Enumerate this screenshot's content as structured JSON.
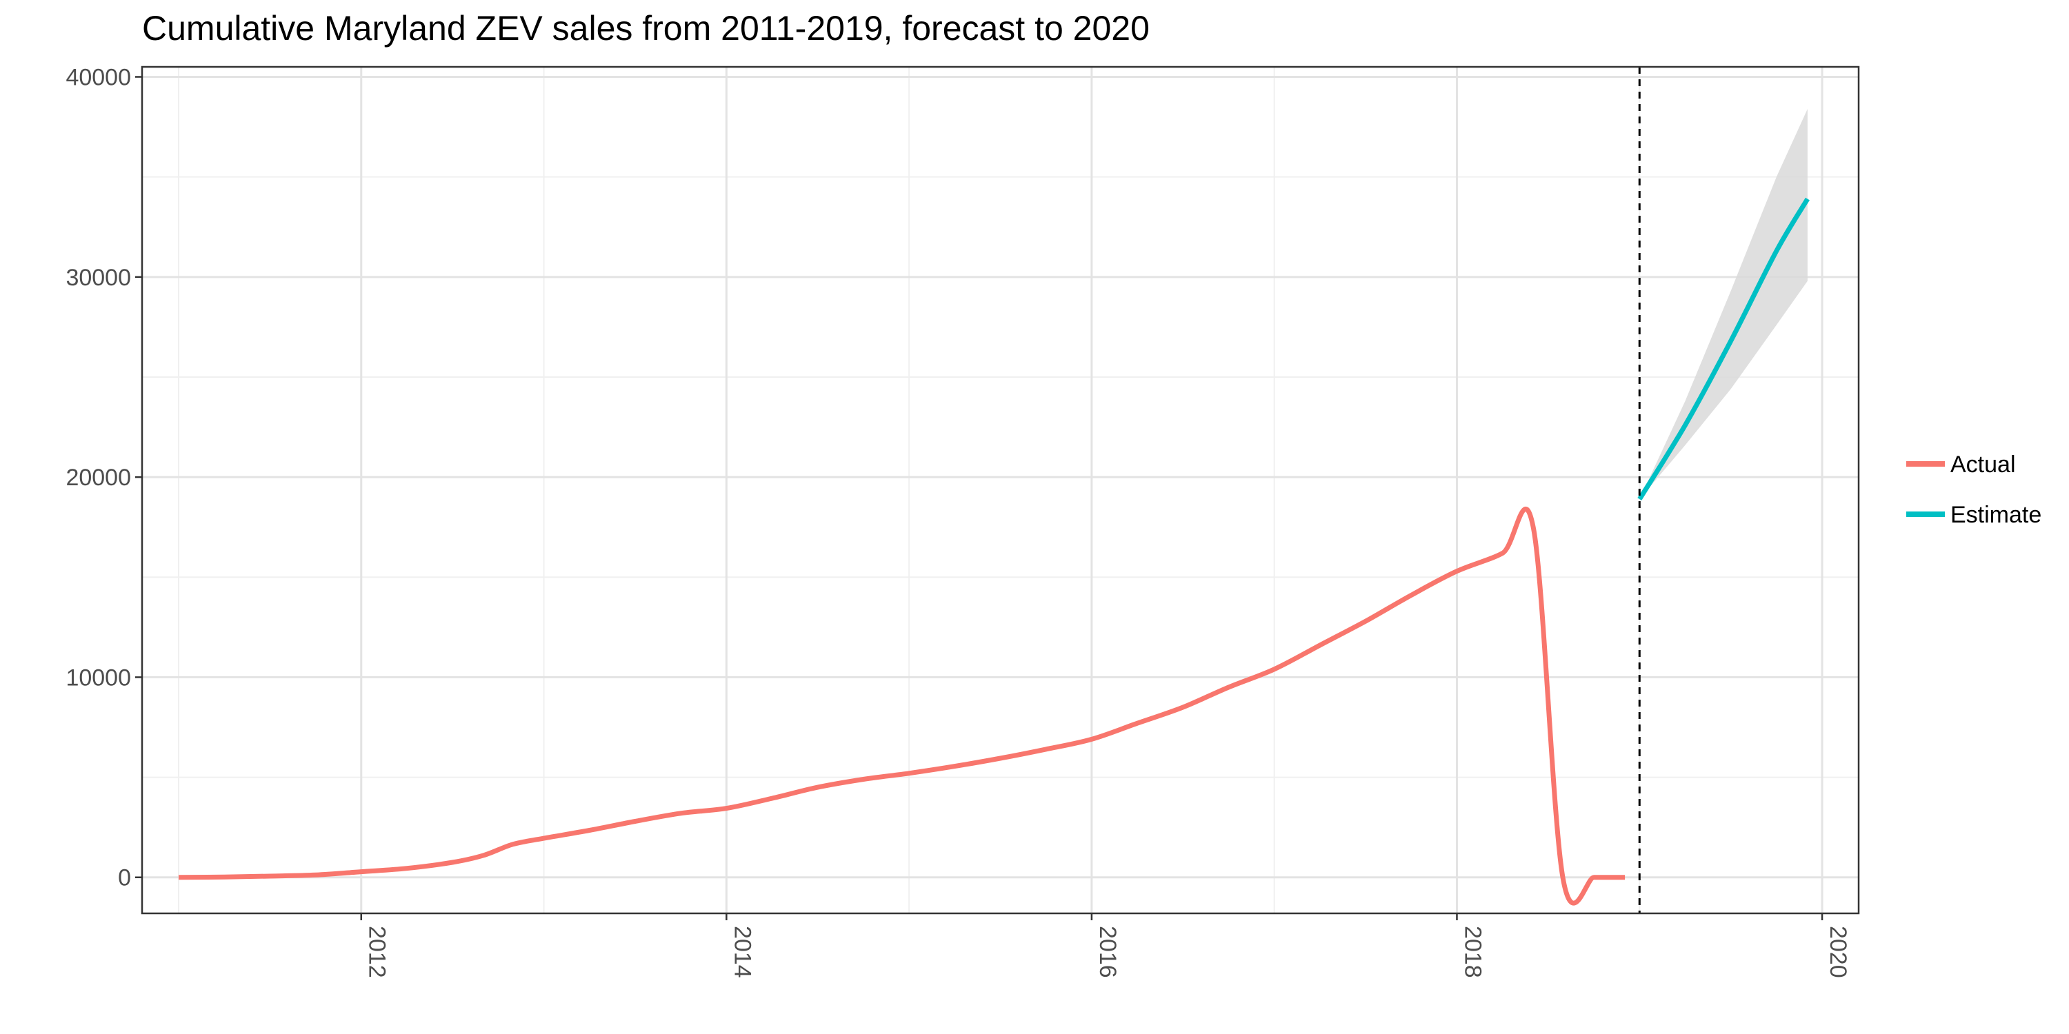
{
  "chart_data": {
    "type": "line",
    "title": "Cumulative Maryland ZEV sales from 2011-2019, forecast to 2020",
    "xlabel": "",
    "ylabel": "",
    "xlim": [
      2010.8,
      2020.2
    ],
    "ylim": [
      -1800,
      40500
    ],
    "yticks": [
      0,
      10000,
      20000,
      30000,
      40000
    ],
    "ytick_labels": [
      "0",
      "10000",
      "20000",
      "30000",
      "40000"
    ],
    "xticks": [
      2012,
      2014,
      2016,
      2018,
      2020
    ],
    "xtick_labels": [
      "2012",
      "2014",
      "2016",
      "2018",
      "2020"
    ],
    "x_minor_gridlines": [
      2011,
      2013,
      2015,
      2017,
      2019
    ],
    "y_minor_gridlines": [
      5000,
      15000,
      25000,
      35000
    ],
    "grid": true,
    "legend_position": "right",
    "vline": {
      "x": 2019.0,
      "style": "dashed",
      "color": "#000000"
    },
    "series": [
      {
        "name": "Actual",
        "color": "#F8766D",
        "x": [
          2011.0,
          2011.25,
          2011.5,
          2011.75,
          2012.0,
          2012.25,
          2012.5,
          2012.67,
          2012.83,
          2013.0,
          2013.25,
          2013.5,
          2013.75,
          2014.0,
          2014.25,
          2014.5,
          2014.75,
          2015.0,
          2015.25,
          2015.5,
          2015.75,
          2016.0,
          2016.25,
          2016.5,
          2016.75,
          2017.0,
          2017.25,
          2017.5,
          2017.75,
          2018.0,
          2018.25,
          2018.42,
          2018.58,
          2018.75,
          2018.83,
          2018.92
        ],
        "values": [
          0,
          20,
          60,
          120,
          280,
          450,
          750,
          1100,
          1650,
          1950,
          2350,
          2800,
          3200,
          3450,
          3950,
          4500,
          4900,
          5200,
          5550,
          5950,
          6400,
          6900,
          7700,
          8500,
          9500,
          10400,
          11600,
          12800,
          14100,
          15300,
          16200,
          17400,
          0,
          0,
          0,
          0
        ]
      },
      {
        "name": "Estimate",
        "color": "#00BFC4",
        "x": [
          2019.0,
          2019.25,
          2019.5,
          2019.75,
          2019.92
        ],
        "values": [
          18900,
          22600,
          26800,
          31300,
          33900
        ],
        "ci_lower": [
          18900,
          21600,
          24400,
          27600,
          29800
        ],
        "ci_upper": [
          18900,
          23800,
          29300,
          35000,
          38400
        ]
      }
    ]
  }
}
